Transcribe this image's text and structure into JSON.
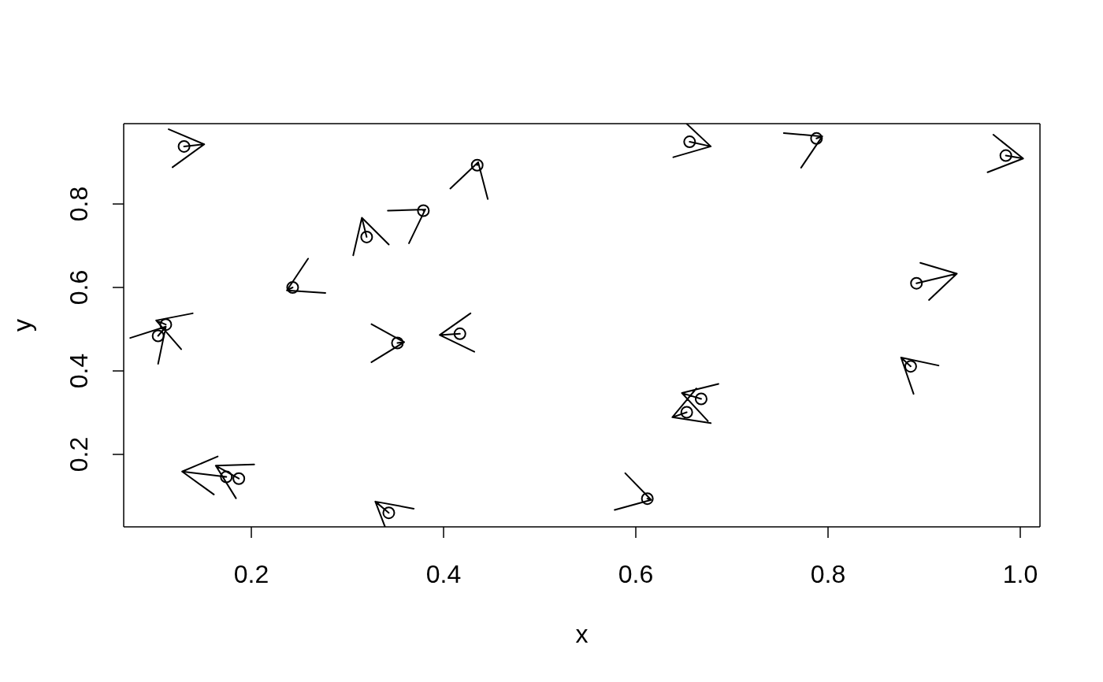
{
  "chart_data": {
    "type": "scatter",
    "xlabel": "x",
    "ylabel": "y",
    "xlim": [
      0.0672,
      1.0205
    ],
    "ylim": [
      0.0264,
      0.9925
    ],
    "xticks": [
      0.2,
      0.4,
      0.6,
      0.8,
      {
        "value": 1,
        "label": "1.0"
      }
    ],
    "yticks": [
      0.2,
      0.4,
      0.6,
      0.8
    ],
    "series": [
      {
        "type": "scatter",
        "marker": "circle",
        "color": "#000000",
        "x": [
          0.13,
          0.243,
          0.32,
          0.379,
          0.435,
          0.656,
          0.788,
          0.985,
          0.892,
          0.111,
          0.103,
          0.352,
          0.174,
          0.187,
          0.343,
          0.417,
          0.668,
          0.653,
          0.612,
          0.886
        ],
        "values": [
          0.938,
          0.6,
          0.721,
          0.784,
          0.893,
          0.949,
          0.957,
          0.916,
          0.61,
          0.511,
          0.484,
          0.467,
          0.146,
          0.142,
          0.06,
          0.489,
          0.333,
          0.301,
          0.094,
          0.411
        ]
      },
      {
        "type": "line",
        "marker": "none",
        "line_style": "solid",
        "color": "#000000",
        "x": [
          0.13,
          0.151,
          0.114,
          null,
          0.118,
          0.151,
          null,
          0.243,
          0.237,
          0.259,
          null,
          0.277,
          0.237,
          null,
          0.32,
          0.315,
          0.306,
          null,
          0.343,
          0.315,
          null,
          0.379,
          0.381,
          0.342,
          null,
          0.364,
          0.381,
          null,
          0.435,
          0.436,
          0.407,
          null,
          0.446,
          0.436,
          null,
          0.656,
          0.678,
          0.653,
          null,
          0.639,
          0.678,
          null,
          0.788,
          0.794,
          0.754,
          null,
          0.772,
          0.794,
          null,
          0.985,
          1.003,
          0.972,
          null,
          0.966,
          1.003,
          null,
          0.892,
          0.934,
          0.896,
          null,
          0.905,
          0.934,
          null,
          0.111,
          0.101,
          0.139,
          null,
          0.127,
          0.101,
          null,
          0.103,
          0.111,
          0.074,
          null,
          0.103,
          0.111,
          null,
          0.352,
          0.359,
          0.325,
          null,
          0.325,
          0.359,
          null,
          0.174,
          0.128,
          0.165,
          null,
          0.161,
          0.128,
          null,
          0.187,
          0.163,
          0.203,
          null,
          0.184,
          0.163,
          null,
          0.343,
          0.329,
          0.369,
          null,
          0.339,
          0.329,
          null,
          0.417,
          0.396,
          0.428,
          null,
          0.432,
          0.396,
          null,
          0.668,
          0.648,
          0.686,
          null,
          0.675,
          0.648,
          null,
          0.653,
          0.638,
          0.663,
          null,
          0.678,
          0.638,
          null,
          0.612,
          0.616,
          0.589,
          null,
          0.578,
          0.616,
          null,
          0.886,
          0.876,
          0.915,
          null,
          0.889,
          0.876,
          null
        ],
        "values": [
          0.938,
          0.943,
          0.979,
          null,
          0.888,
          0.943,
          null,
          0.6,
          0.593,
          0.669,
          null,
          0.587,
          0.593,
          null,
          0.721,
          0.767,
          0.677,
          null,
          0.703,
          0.767,
          null,
          0.784,
          0.787,
          0.784,
          null,
          0.706,
          0.787,
          null,
          0.893,
          0.9,
          0.837,
          null,
          0.812,
          0.9,
          null,
          0.949,
          0.938,
          0.992,
          null,
          0.912,
          0.938,
          null,
          0.957,
          0.962,
          0.97,
          null,
          0.887,
          0.962,
          null,
          0.916,
          0.909,
          0.966,
          null,
          0.876,
          0.909,
          null,
          0.61,
          0.633,
          0.659,
          null,
          0.57,
          0.633,
          null,
          0.511,
          0.521,
          0.538,
          null,
          0.452,
          0.521,
          null,
          0.484,
          0.506,
          0.479,
          null,
          0.417,
          0.506,
          null,
          0.467,
          0.469,
          0.512,
          null,
          0.421,
          0.469,
          null,
          0.146,
          0.159,
          0.195,
          null,
          0.104,
          0.159,
          null,
          0.142,
          0.173,
          0.176,
          null,
          0.095,
          0.173,
          null,
          0.06,
          0.087,
          0.07,
          null,
          0.027,
          0.087,
          null,
          0.489,
          0.486,
          0.538,
          null,
          0.446,
          0.486,
          null,
          0.333,
          0.347,
          0.369,
          null,
          0.28,
          0.347,
          null,
          0.301,
          0.289,
          0.358,
          null,
          0.275,
          0.289,
          null,
          0.094,
          0.091,
          0.155,
          null,
          0.067,
          0.091,
          null,
          0.411,
          0.432,
          0.413,
          null,
          0.345,
          0.432,
          null
        ]
      }
    ]
  }
}
